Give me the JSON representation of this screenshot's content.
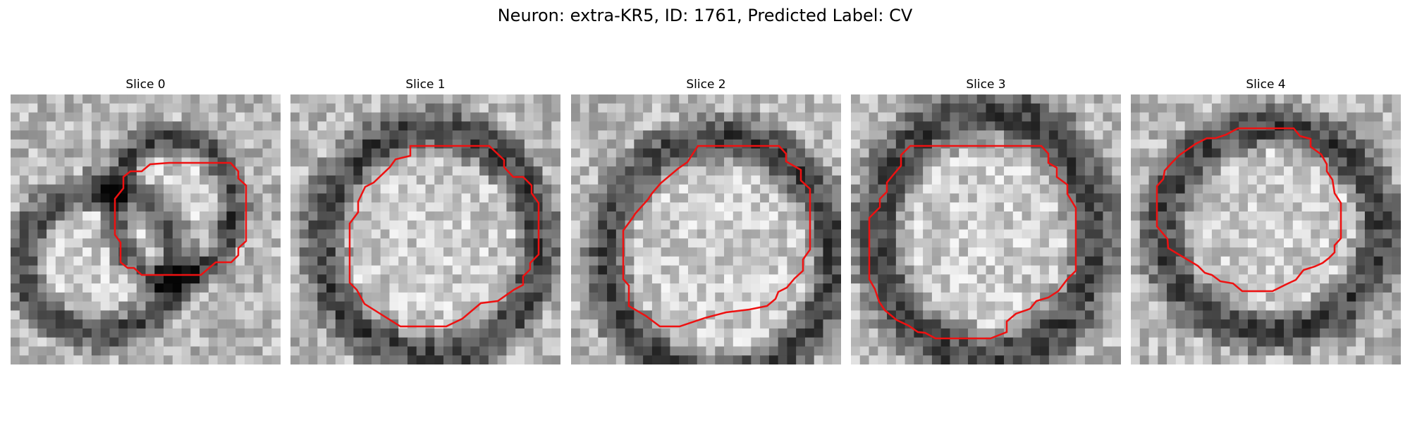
{
  "figure": {
    "title": "Neuron: extra-KR5, ID: 1761, Predicted Label: CV"
  },
  "colors": {
    "contour": "#ee1111",
    "background": "#ffffff"
  },
  "panels": [
    {
      "title": "Slice 0",
      "seed": 11
    },
    {
      "title": "Slice 1",
      "seed": 23
    },
    {
      "title": "Slice 2",
      "seed": 37
    },
    {
      "title": "Slice 3",
      "seed": 41
    },
    {
      "title": "Slice 4",
      "seed": 59
    }
  ]
}
